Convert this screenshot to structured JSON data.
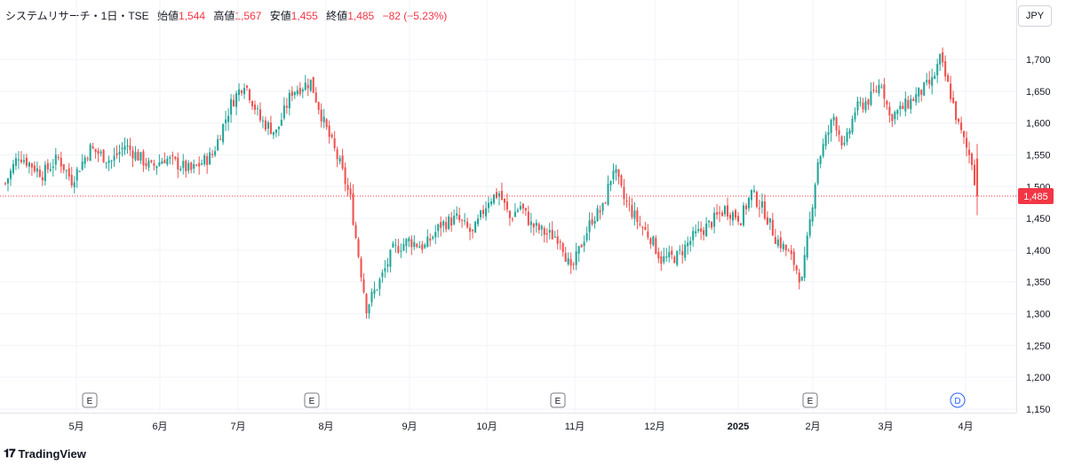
{
  "legend": {
    "symbol": "システムリサーチ・1日・TSE",
    "open_label": "始値",
    "open": "1,544",
    "high_label": "高値",
    "high": "1,567",
    "low_label": "安値",
    "low": "1,455",
    "close_label": "終値",
    "close": "1,485",
    "change": "−82 (−5.23%)"
  },
  "currency": "JPY",
  "brand": "TradingView",
  "last_price_label": "1,485",
  "colors": {
    "up": "#26a69a",
    "down": "#ef5350",
    "last": "#f23645",
    "event": "#2962ff"
  },
  "chart_data": {
    "type": "candlestick",
    "y_axis_ticks": [
      "1,700",
      "1,650",
      "1,600",
      "1,550",
      "1,500",
      "1,450",
      "1,400",
      "1,350",
      "1,300",
      "1,250",
      "1,200",
      "1,150"
    ],
    "y_tick_values": [
      1700,
      1650,
      1600,
      1550,
      1500,
      1450,
      1400,
      1350,
      1300,
      1250,
      1200,
      1150
    ],
    "x_axis_labels": [
      "5月",
      "6月",
      "7月",
      "8月",
      "9月",
      "10月",
      "11月",
      "12月",
      "2025",
      "2月",
      "3月",
      "4月"
    ],
    "last_price": 1485,
    "event_markers": [
      {
        "label": "E"
      },
      {
        "label": "E"
      },
      {
        "label": "E"
      },
      {
        "label": "E"
      },
      {
        "label": "D"
      }
    ],
    "candle_note": "approximate daily OHLC path read from the chart",
    "anchors": [
      [
        0,
        1505
      ],
      [
        5,
        1550
      ],
      [
        14,
        1520
      ],
      [
        20,
        1545
      ],
      [
        25,
        1510
      ],
      [
        32,
        1560
      ],
      [
        40,
        1540
      ],
      [
        45,
        1565
      ],
      [
        55,
        1530
      ],
      [
        60,
        1545
      ],
      [
        70,
        1525
      ],
      [
        78,
        1550
      ],
      [
        85,
        1630
      ],
      [
        90,
        1665
      ],
      [
        96,
        1605
      ],
      [
        102,
        1585
      ],
      [
        108,
        1650
      ],
      [
        115,
        1665
      ],
      [
        120,
        1600
      ],
      [
        126,
        1535
      ],
      [
        130,
        1480
      ],
      [
        132,
        1420
      ],
      [
        136,
        1310
      ],
      [
        142,
        1360
      ],
      [
        146,
        1400
      ],
      [
        152,
        1415
      ],
      [
        158,
        1405
      ],
      [
        164,
        1440
      ],
      [
        170,
        1450
      ],
      [
        176,
        1425
      ],
      [
        182,
        1480
      ],
      [
        186,
        1490
      ],
      [
        190,
        1450
      ],
      [
        194,
        1470
      ],
      [
        198,
        1440
      ],
      [
        204,
        1425
      ],
      [
        209,
        1420
      ],
      [
        213,
        1365
      ],
      [
        217,
        1410
      ],
      [
        221,
        1450
      ],
      [
        225,
        1465
      ],
      [
        229,
        1530
      ],
      [
        233,
        1480
      ],
      [
        239,
        1440
      ],
      [
        243,
        1420
      ],
      [
        247,
        1385
      ],
      [
        253,
        1390
      ],
      [
        259,
        1420
      ],
      [
        265,
        1440
      ],
      [
        271,
        1465
      ],
      [
        277,
        1450
      ],
      [
        281,
        1490
      ],
      [
        286,
        1460
      ],
      [
        290,
        1420
      ],
      [
        294,
        1400
      ],
      [
        297,
        1380
      ],
      [
        300,
        1350
      ],
      [
        306,
        1540
      ],
      [
        312,
        1610
      ],
      [
        316,
        1560
      ],
      [
        320,
        1620
      ],
      [
        326,
        1640
      ],
      [
        330,
        1665
      ],
      [
        333,
        1610
      ],
      [
        337,
        1620
      ],
      [
        341,
        1635
      ],
      [
        345,
        1650
      ],
      [
        349,
        1665
      ],
      [
        352,
        1700
      ],
      [
        356,
        1645
      ],
      [
        359,
        1595
      ],
      [
        362,
        1560
      ],
      [
        364,
        1540
      ],
      [
        366,
        1485
      ]
    ],
    "n_days": 367
  }
}
